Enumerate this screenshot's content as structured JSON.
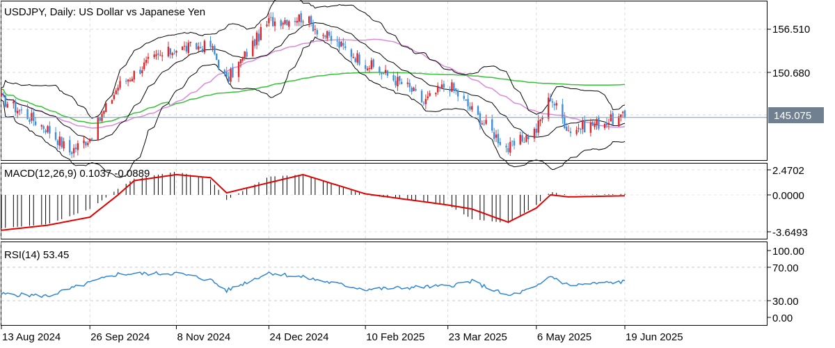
{
  "header": {
    "symbol": "USDJPY",
    "timeframe": "Daily",
    "title": "USDJPY, Daily:  US Dollar vs Japanese Yen"
  },
  "macd_panel": {
    "label": "MACD(12,26,9) 0.1037 -0.0889",
    "ticks": [
      "2.4702",
      "0.0000",
      "-3.6493"
    ]
  },
  "rsi_panel": {
    "label": "RSI(14) 53.45",
    "ticks": [
      "100.00",
      "70.00",
      "30.00",
      "0.00"
    ]
  },
  "price_axis": {
    "ticks": [
      "156.510",
      "150.680"
    ],
    "current_price": "145.075"
  },
  "time_axis": {
    "labels": [
      "13 Aug 2024",
      "26 Sep 2024",
      "8 Nov 2024",
      "24 Dec 2024",
      "10 Feb 2025",
      "23 Mar 2025",
      "6 May 2025",
      "19 Jun 2025"
    ]
  },
  "colors": {
    "bull_candle": "#e0262b",
    "bear_candle": "#3d8ede",
    "ma_fast": "#d98ad9",
    "ma_slow": "#35c135",
    "bollinger": "#000000",
    "macd_hist": "#000000",
    "macd_signal": "#e00000",
    "rsi": "#2f86d6",
    "price_line": "#8899aa",
    "price_box": "#708090"
  },
  "chart_data": [
    {
      "type": "candlestick",
      "title": "USDJPY, Daily:  US Dollar vs Japanese Yen",
      "x_range": [
        "13 Aug 2024",
        "19 Jun 2025"
      ],
      "ylim": [
        139.6,
        160.0
      ],
      "current_price": 145.075,
      "series": [
        {
          "name": "USDJPY",
          "close_path": {
            "x": [
              "13 Aug 2024",
              "5 Sep 2024",
              "16 Sep 2024",
              "26 Sep 2024",
              "10 Oct 2024",
              "25 Oct 2024",
              "8 Nov 2024",
              "25 Nov 2024",
              "3 Dec 2024",
              "24 Dec 2024",
              "10 Jan 2025",
              "20 Jan 2025",
              "10 Feb 2025",
              "3 Mar 2025",
              "11 Mar 2025",
              "23 Mar 2025",
              "4 Apr 2025",
              "22 Apr 2025",
              "6 May 2025",
              "13 May 2025",
              "22 May 2025",
              "19 Jun 2025"
            ],
            "y": [
              147.5,
              143.6,
              140.7,
              142.5,
              149.1,
              152.2,
              153.9,
              154.3,
              149.8,
              157.4,
              158.0,
              155.8,
              152.1,
              149.0,
              147.0,
              149.5,
              146.0,
              141.0,
              143.5,
              147.8,
              143.5,
              145.1
            ]
          }
        }
      ]
    },
    {
      "type": "line",
      "title": "MACD(12,26,9) 0.1037 -0.0889",
      "ylim": [
        -3.6493,
        2.4702
      ],
      "x": [
        "13 Aug 2024",
        "5 Sep 2024",
        "26 Sep 2024",
        "10 Oct 2024",
        "18 Oct 2024",
        "8 Nov 2024",
        "25 Nov 2024",
        "3 Dec 2024",
        "24 Dec 2024",
        "10 Jan 2025",
        "10 Feb 2025",
        "23 Mar 2025",
        "4 Apr 2025",
        "22 Apr 2025",
        "6 May 2025",
        "13 May 2025",
        "22 May 2025",
        "19 Jun 2025"
      ],
      "series": [
        {
          "name": "histogram",
          "values": [
            -3.3,
            -2.9,
            -1.4,
            0.6,
            1.6,
            2.3,
            1.5,
            -0.5,
            1.8,
            2.0,
            0.0,
            -1.0,
            -2.4,
            -2.8,
            -1.0,
            0.3,
            0.0,
            0.1
          ]
        },
        {
          "name": "signal",
          "values": [
            -3.5,
            -3.0,
            -2.2,
            0.0,
            1.4,
            2.0,
            1.7,
            0.2,
            1.2,
            2.0,
            0.1,
            -1.0,
            -1.4,
            -2.7,
            -1.3,
            0.0,
            -0.2,
            -0.09
          ]
        }
      ]
    },
    {
      "type": "line",
      "title": "RSI(14) 53.45",
      "ylim": [
        0,
        100
      ],
      "x": [
        "13 Aug 2024",
        "5 Sep 2024",
        "26 Sep 2024",
        "10 Oct 2024",
        "8 Nov 2024",
        "25 Nov 2024",
        "3 Dec 2024",
        "24 Dec 2024",
        "10 Jan 2025",
        "10 Feb 2025",
        "23 Mar 2025",
        "4 Apr 2025",
        "22 Apr 2025",
        "6 May 2025",
        "13 May 2025",
        "22 May 2025",
        "19 Jun 2025"
      ],
      "series": [
        {
          "name": "RSI",
          "values": [
            35,
            32,
            52,
            65,
            66,
            56,
            40,
            67,
            60,
            42,
            47,
            54,
            32,
            45,
            62,
            48,
            53.45
          ]
        }
      ]
    }
  ]
}
